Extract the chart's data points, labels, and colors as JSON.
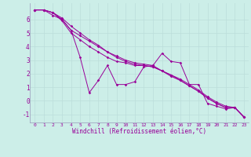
{
  "xlabel": "Windchill (Refroidissement éolien,°C)",
  "background_color": "#cceee8",
  "grid_color": "#bbddda",
  "line_color": "#990099",
  "xlim": [
    -0.5,
    23.5
  ],
  "ylim": [
    -1.6,
    7.2
  ],
  "yticks": [
    -1,
    0,
    1,
    2,
    3,
    4,
    5,
    6
  ],
  "xticks": [
    0,
    1,
    2,
    3,
    4,
    5,
    6,
    7,
    8,
    9,
    10,
    11,
    12,
    13,
    14,
    15,
    16,
    17,
    18,
    19,
    20,
    21,
    22,
    23
  ],
  "xtick_labels": [
    "0",
    "1",
    "2",
    "3",
    "4",
    "5",
    "6",
    "7",
    "8",
    "9",
    "10",
    "11",
    "12",
    "13",
    "14",
    "15",
    "16",
    "17",
    "18",
    "19",
    "20",
    "21",
    "22",
    "23"
  ],
  "series": [
    [
      6.7,
      6.7,
      6.3,
      6.0,
      5.2,
      3.2,
      0.6,
      1.5,
      2.6,
      1.2,
      1.2,
      1.4,
      2.5,
      2.6,
      3.5,
      2.9,
      2.8,
      1.2,
      1.2,
      -0.2,
      -0.4,
      -0.6,
      -0.5,
      -1.2
    ],
    [
      6.7,
      6.7,
      6.5,
      5.9,
      5.0,
      4.5,
      4.0,
      3.6,
      3.2,
      2.9,
      2.8,
      2.6,
      2.6,
      2.5,
      2.2,
      1.9,
      1.5,
      1.1,
      0.7,
      0.2,
      -0.2,
      -0.5,
      -0.5,
      -1.2
    ],
    [
      6.7,
      6.7,
      6.5,
      6.0,
      5.2,
      4.8,
      4.4,
      4.0,
      3.6,
      3.2,
      2.9,
      2.7,
      2.6,
      2.5,
      2.2,
      1.8,
      1.5,
      1.1,
      0.7,
      0.2,
      -0.2,
      -0.5,
      -0.5,
      -1.2
    ],
    [
      6.7,
      6.7,
      6.5,
      6.1,
      5.5,
      5.0,
      4.5,
      4.1,
      3.6,
      3.3,
      3.0,
      2.8,
      2.7,
      2.6,
      2.2,
      1.9,
      1.6,
      1.2,
      0.8,
      0.3,
      -0.1,
      -0.4,
      -0.5,
      -1.2
    ]
  ]
}
